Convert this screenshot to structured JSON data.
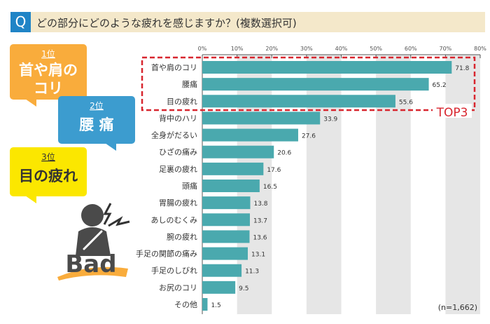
{
  "header": {
    "q_mark": "Q",
    "question": "どの部分にどのような疲れを感じますか？(複数選択可)"
  },
  "callouts": [
    {
      "rank": "1位",
      "lines": [
        "首や肩の",
        "コリ"
      ],
      "color": "#f9ac3c"
    },
    {
      "rank": "2位",
      "lines": [
        "腰 痛"
      ],
      "color": "#3c9ccf"
    },
    {
      "rank": "3位",
      "lines": [
        "目の疲れ"
      ],
      "color": "#fbe700"
    }
  ],
  "illustration": {
    "label": "Bad",
    "icon": "person-shoulder-pain-icon"
  },
  "highlight": {
    "label": "TOP3",
    "color": "#d8262f"
  },
  "note": "(n=1,662)",
  "chart_data": {
    "type": "bar",
    "orientation": "horizontal",
    "categories": [
      "首や肩のコリ",
      "腰痛",
      "目の疲れ",
      "背中のハリ",
      "全身がだるい",
      "ひざの痛み",
      "足裏の疲れ",
      "頭痛",
      "胃腸の疲れ",
      "あしのむくみ",
      "腕の疲れ",
      "手足の関節の痛み",
      "手足のしびれ",
      "お尻のコリ",
      "その他"
    ],
    "values": [
      71.8,
      65.2,
      55.6,
      33.9,
      27.6,
      20.6,
      17.6,
      16.5,
      13.8,
      13.7,
      13.6,
      13.1,
      11.3,
      9.5,
      1.5
    ],
    "xlim": [
      0,
      80
    ],
    "ticks": [
      "0%",
      "10%",
      "20%",
      "30%",
      "40%",
      "50%",
      "60%",
      "70%",
      "80%"
    ],
    "bar_color": "#4aa9ae",
    "alternating_bands": true,
    "band_color": "#e6e6e6"
  }
}
